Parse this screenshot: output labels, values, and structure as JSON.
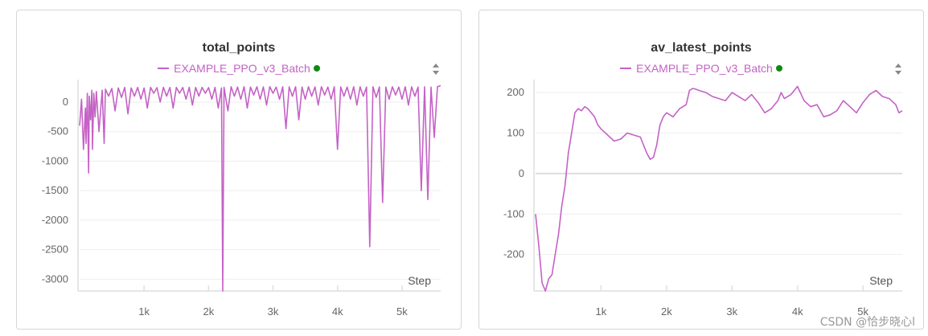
{
  "colors": {
    "series": "#c462c6",
    "status_dot": "#118811",
    "grid": "#eeeeee",
    "zero_line": "#dddddd"
  },
  "icons": {
    "sort": "sort-arrows-icon",
    "status": "status-dot-icon"
  },
  "watermark": "CSDN @恰步晓心l",
  "chart_data": [
    {
      "type": "line",
      "title": "total_points",
      "xlabel": "Step",
      "ylabel": "",
      "legend": "top-center",
      "xlim": [
        0,
        5600
      ],
      "ylim": [
        -3200,
        300
      ],
      "xticks": [
        1000,
        2000,
        3000,
        4000,
        5000
      ],
      "xtick_labels": [
        "1k",
        "2k",
        "3k",
        "4k",
        "5k"
      ],
      "yticks": [
        0,
        -500,
        -1000,
        -1500,
        -2000,
        -2500,
        -3000
      ],
      "ytick_labels": [
        "0",
        "-500",
        "-1000",
        "-1500",
        "-2000",
        "-2500",
        "-3000"
      ],
      "series": [
        {
          "name": "EXAMPLE_PPO_v3_Batch",
          "x": [
            0,
            30,
            60,
            90,
            100,
            120,
            140,
            150,
            170,
            190,
            200,
            220,
            240,
            260,
            300,
            350,
            380,
            400,
            450,
            500,
            550,
            600,
            650,
            700,
            750,
            800,
            850,
            900,
            950,
            1000,
            1050,
            1100,
            1150,
            1200,
            1250,
            1300,
            1350,
            1400,
            1450,
            1500,
            1550,
            1600,
            1650,
            1700,
            1750,
            1800,
            1850,
            1900,
            1950,
            2000,
            2050,
            2100,
            2150,
            2200,
            2220,
            2240,
            2300,
            2350,
            2400,
            2450,
            2500,
            2550,
            2600,
            2650,
            2700,
            2750,
            2800,
            2850,
            2900,
            2950,
            3000,
            3050,
            3100,
            3150,
            3200,
            3250,
            3300,
            3350,
            3400,
            3450,
            3500,
            3550,
            3600,
            3650,
            3700,
            3750,
            3800,
            3850,
            3900,
            3950,
            4000,
            4050,
            4100,
            4150,
            4200,
            4250,
            4300,
            4350,
            4400,
            4450,
            4500,
            4550,
            4600,
            4650,
            4700,
            4750,
            4800,
            4850,
            4900,
            4950,
            5000,
            5050,
            5100,
            5150,
            5200,
            5250,
            5300,
            5350,
            5400,
            5450,
            5500,
            5550,
            5600
          ],
          "values": [
            -400,
            50,
            -800,
            -100,
            -700,
            150,
            -1200,
            100,
            -300,
            200,
            -800,
            150,
            -250,
            180,
            -500,
            200,
            -700,
            220,
            100,
            230,
            -150,
            240,
            80,
            250,
            -200,
            240,
            100,
            250,
            50,
            240,
            -100,
            250,
            150,
            245,
            0,
            250,
            100,
            248,
            -100,
            250,
            150,
            248,
            50,
            250,
            -50,
            248,
            100,
            250,
            150,
            245,
            50,
            250,
            -100,
            240,
            -3200,
            250,
            -150,
            260,
            100,
            255,
            50,
            260,
            -100,
            255,
            120,
            260,
            50,
            258,
            -50,
            260,
            150,
            255,
            50,
            260,
            -450,
            258,
            100,
            260,
            -300,
            255,
            50,
            260,
            100,
            258,
            -50,
            260,
            120,
            255,
            50,
            260,
            -800,
            258,
            100,
            255,
            50,
            260,
            -50,
            258,
            100,
            255,
            -2450,
            260,
            80,
            258,
            -1700,
            255,
            50,
            260,
            120,
            255,
            50,
            260,
            -50,
            258,
            100,
            255,
            -1500,
            260,
            -1650,
            255,
            -600,
            260,
            280
          ]
        }
      ]
    },
    {
      "type": "line",
      "title": "av_latest_points",
      "xlabel": "Step",
      "ylabel": "",
      "legend": "top-center",
      "xlim": [
        0,
        5600
      ],
      "ylim": [
        -290,
        220
      ],
      "xticks": [
        1000,
        2000,
        3000,
        4000,
        5000
      ],
      "xtick_labels": [
        "1k",
        "2k",
        "3k",
        "4k",
        "5k"
      ],
      "yticks": [
        200,
        100,
        0,
        -100,
        -200
      ],
      "ytick_labels": [
        "200",
        "100",
        "0",
        "-100",
        "-200"
      ],
      "series": [
        {
          "name": "EXAMPLE_PPO_v3_Batch",
          "x": [
            0,
            50,
            100,
            150,
            200,
            250,
            300,
            350,
            400,
            450,
            500,
            550,
            600,
            650,
            700,
            750,
            800,
            850,
            900,
            950,
            1000,
            1100,
            1200,
            1300,
            1400,
            1500,
            1600,
            1700,
            1750,
            1800,
            1850,
            1900,
            1950,
            2000,
            2100,
            2200,
            2300,
            2350,
            2400,
            2450,
            2500,
            2600,
            2700,
            2800,
            2900,
            3000,
            3100,
            3200,
            3300,
            3400,
            3500,
            3600,
            3700,
            3750,
            3800,
            3900,
            4000,
            4100,
            4200,
            4300,
            4400,
            4500,
            4600,
            4700,
            4800,
            4900,
            5000,
            5100,
            5200,
            5300,
            5400,
            5500,
            5550,
            5600
          ],
          "values": [
            -100,
            -180,
            -270,
            -290,
            -260,
            -250,
            -200,
            -150,
            -80,
            -30,
            50,
            100,
            150,
            160,
            155,
            165,
            160,
            150,
            140,
            120,
            110,
            95,
            80,
            85,
            100,
            95,
            90,
            50,
            35,
            40,
            70,
            120,
            140,
            150,
            140,
            160,
            170,
            205,
            210,
            208,
            205,
            200,
            190,
            185,
            180,
            200,
            190,
            180,
            195,
            175,
            150,
            160,
            180,
            200,
            185,
            195,
            215,
            180,
            165,
            170,
            140,
            145,
            155,
            180,
            165,
            150,
            175,
            195,
            205,
            190,
            185,
            170,
            150,
            155
          ]
        }
      ]
    }
  ]
}
